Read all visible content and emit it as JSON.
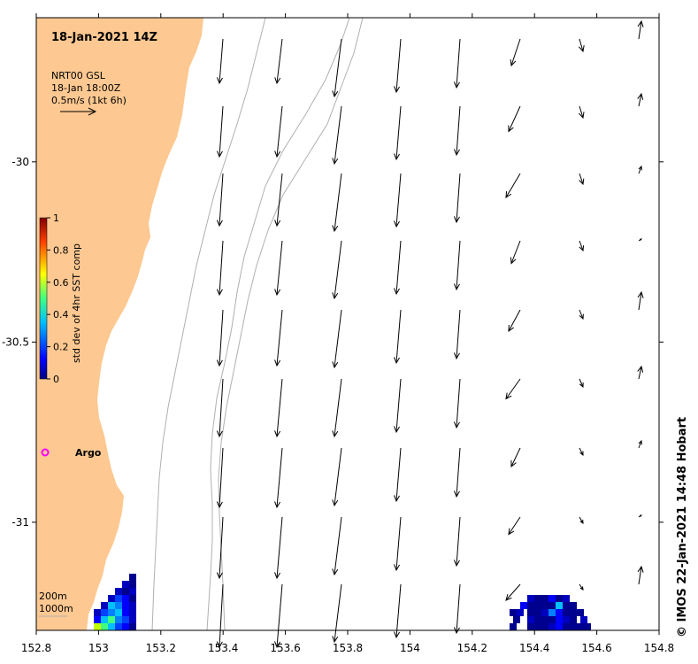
{
  "map": {
    "title": "18-Jan-2021 14Z",
    "velocity_legend": {
      "line1": "NRT00 GSL",
      "line2": "18-Jan 18:00Z",
      "line3": "0.5m/s (1kt 6h)"
    },
    "colorbar": {
      "label": "std dev of 4hr SST comp",
      "ticks": [
        "1",
        "0.8",
        "0.6",
        "0.4",
        "0.2",
        "0"
      ],
      "range": [
        0,
        1
      ]
    },
    "argo_label": "Argo",
    "isobaths": [
      "200m",
      "1000m"
    ],
    "x_ticks": [
      "152.8",
      "153",
      "153.2",
      "153.4",
      "153.6",
      "153.8",
      "154",
      "154.2",
      "154.4",
      "154.6",
      "154.8"
    ],
    "y_ticks": [
      "-30",
      "-30.5",
      "-31"
    ],
    "xlim": [
      152.8,
      154.8
    ],
    "ylim": [
      -31.3,
      -29.6
    ],
    "credit": "© IMOS 22-Jan-2021 14:48 Hobart",
    "colors": {
      "land": "#fdc891",
      "isobath": "#b0b0b0",
      "argo_marker": "#ff00ff",
      "arrow": "#000000"
    }
  }
}
